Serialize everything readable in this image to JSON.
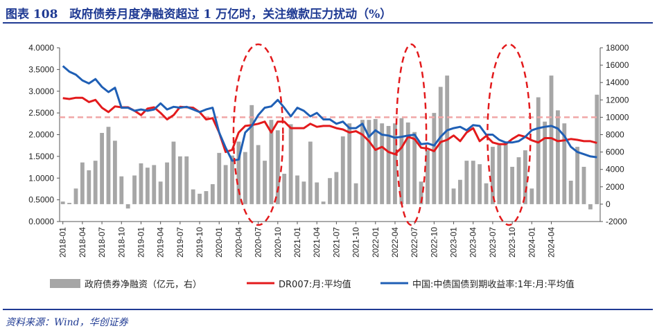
{
  "header": {
    "title": "图表 108　政府债券月度净融资超过 1 万亿时，关注缴款压力扰动（%）"
  },
  "footer": {
    "source": "资料来源：Wind，华创证券"
  },
  "colors": {
    "brand": "#1f3a93",
    "bars": "#a6a6a6",
    "dr007": "#e31a1c",
    "bond_yield": "#1f5fb5",
    "reference_line": "#f0a6a6",
    "highlight_ellipse": "#e31a1c"
  },
  "chart_data": {
    "type": "bar",
    "title": "",
    "legend_position": "bottom",
    "grid": false,
    "x_labels": [
      "2018-01",
      "2018-04",
      "2018-07",
      "2018-10",
      "2019-01",
      "2019-04",
      "2019-07",
      "2019-10",
      "2020-01",
      "2020-04",
      "2020-07",
      "2020-10",
      "2021-01",
      "2021-04",
      "2021-07",
      "2021-10",
      "2022-01",
      "2022-04",
      "2022-07",
      "2022-10",
      "2023-01",
      "2023-04",
      "2023-07",
      "2023-10",
      "2024-01",
      "2024-04"
    ],
    "y_left": {
      "range": [
        0,
        4
      ],
      "ticks": [
        "0.0000",
        "0.5000",
        "1.0000",
        "1.5000",
        "2.0000",
        "2.5000",
        "3.0000",
        "3.5000",
        "4.0000"
      ]
    },
    "y_right": {
      "range": [
        -2000,
        18000
      ],
      "ticks": [
        "-2000",
        "0",
        "2000",
        "4000",
        "6000",
        "8000",
        "10000",
        "12000",
        "14000",
        "16000",
        "18000"
      ]
    },
    "reference_line": {
      "axis": "right",
      "value": 10000
    },
    "highlight_ellipses": [
      {
        "from": "2020-04",
        "to": "2020-10"
      },
      {
        "from": "2022-05",
        "to": "2022-08"
      },
      {
        "from": "2023-07",
        "to": "2023-12"
      }
    ],
    "series": [
      {
        "name": "政府债券净融资（亿元，右）",
        "type": "bar",
        "axis": "right",
        "values": [
          300,
          150,
          1800,
          4800,
          3900,
          5000,
          8200,
          8900,
          7300,
          3200,
          -500,
          3300,
          4700,
          4200,
          4500,
          2600,
          4800,
          7200,
          5500,
          5500,
          1700,
          1200,
          1500,
          2300,
          5900,
          4500,
          5600,
          7200,
          6000,
          11400,
          6800,
          5000,
          9700,
          8500,
          3500,
          9200,
          3300,
          2600,
          7200,
          2500,
          300,
          3000,
          3700,
          7800,
          9300,
          2400,
          9700,
          9700,
          9800,
          9300,
          9000,
          9300,
          9900,
          9400,
          8300,
          2600,
          6200,
          10500,
          13500,
          14800,
          1800,
          2800,
          5000,
          5000,
          4600,
          2400,
          6600,
          6800,
          7200,
          4300,
          5400,
          6200,
          1800,
          12300,
          9500,
          14800,
          10800,
          9300,
          2700,
          6600,
          4300,
          -600,
          12600
        ]
      },
      {
        "name": "DR007:月:平均值",
        "type": "line",
        "axis": "left",
        "values": [
          2.84,
          2.82,
          2.85,
          2.85,
          2.75,
          2.8,
          2.62,
          2.52,
          2.65,
          2.63,
          2.63,
          2.55,
          2.45,
          2.6,
          2.63,
          2.5,
          2.35,
          2.45,
          2.64,
          2.63,
          2.62,
          2.52,
          2.35,
          2.38,
          2.05,
          1.6,
          1.65,
          2.05,
          2.2,
          2.22,
          2.25,
          2.3,
          2.05,
          2.3,
          2.3,
          2.15,
          2.15,
          2.15,
          2.25,
          2.18,
          2.2,
          2.2,
          2.15,
          2.12,
          2.05,
          2.08,
          2.0,
          1.85,
          1.65,
          1.72,
          1.6,
          1.55,
          1.7,
          1.95,
          1.9,
          1.7,
          1.68,
          1.62,
          1.83,
          1.88,
          1.98,
          1.85,
          2.05,
          2.15,
          1.85,
          1.97,
          1.82,
          1.78,
          1.78,
          1.9,
          1.99,
          1.95,
          1.87,
          1.82,
          1.92,
          1.92,
          1.85,
          1.87,
          1.9,
          1.88,
          1.85,
          1.85,
          1.81
        ]
      },
      {
        "name": "中国:中债国债到期收益率:1年:月:平均值",
        "type": "line",
        "axis": "left",
        "values": [
          3.58,
          3.45,
          3.38,
          3.25,
          3.18,
          3.28,
          3.1,
          2.98,
          3.08,
          2.62,
          2.62,
          2.55,
          2.58,
          2.55,
          2.58,
          2.72,
          2.58,
          2.64,
          2.62,
          2.64,
          2.58,
          2.52,
          2.58,
          2.62,
          2.05,
          1.7,
          1.4,
          1.43,
          2.05,
          2.2,
          2.45,
          2.62,
          2.65,
          2.8,
          2.62,
          2.42,
          2.62,
          2.55,
          2.42,
          2.5,
          2.35,
          2.35,
          2.25,
          2.3,
          2.15,
          2.15,
          2.25,
          1.95,
          2.1,
          2.0,
          1.98,
          1.93,
          1.95,
          1.98,
          2.0,
          1.78,
          1.8,
          1.75,
          1.95,
          2.1,
          2.15,
          2.18,
          2.1,
          2.22,
          2.2,
          2.0,
          2.0,
          1.88,
          1.82,
          1.82,
          1.85,
          1.95,
          2.1,
          2.15,
          2.18,
          2.2,
          2.14,
          1.97,
          1.72,
          1.6,
          1.55,
          1.5,
          1.48
        ]
      }
    ]
  }
}
